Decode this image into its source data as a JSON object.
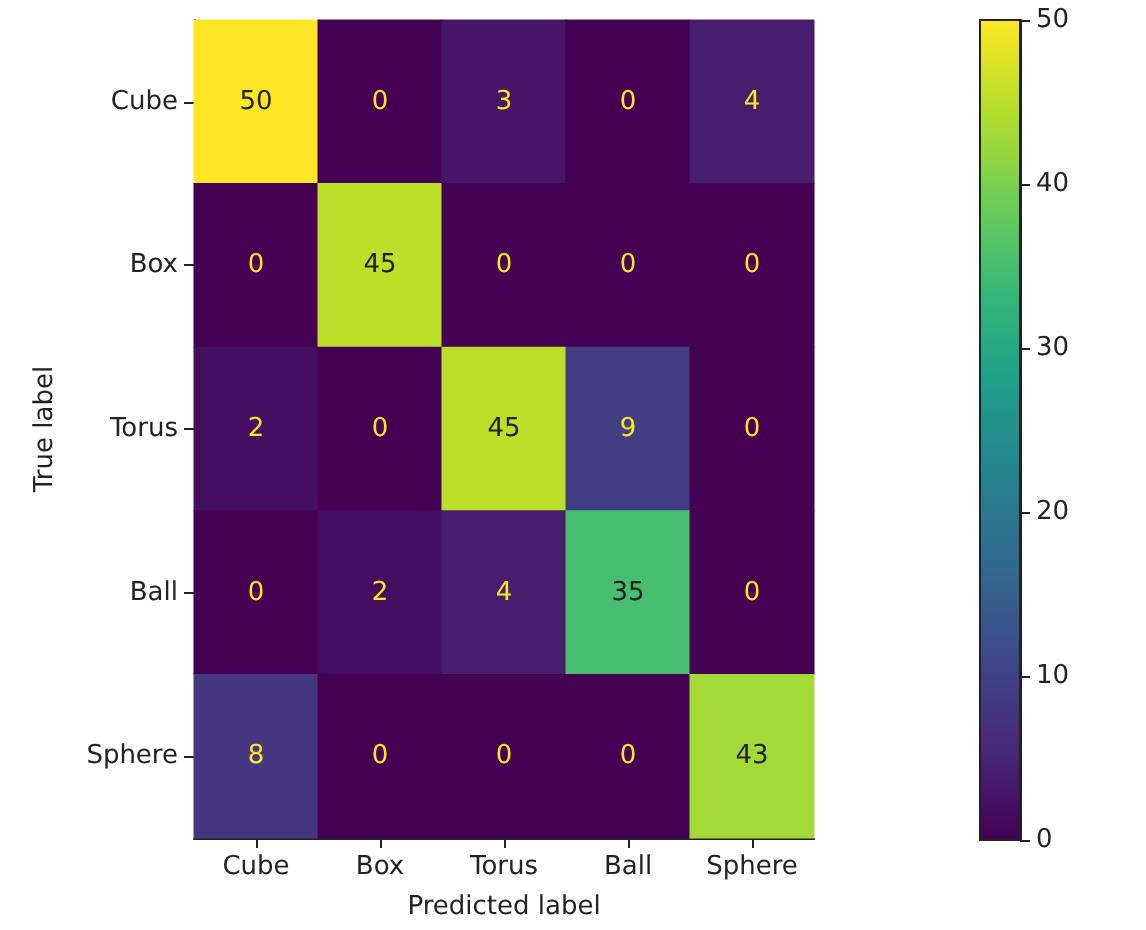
{
  "chart_data": {
    "type": "heatmap",
    "xlabel": "Predicted label",
    "ylabel": "True label",
    "categories": [
      "Cube",
      "Box",
      "Torus",
      "Ball",
      "Sphere"
    ],
    "y_categories": [
      "Cube",
      "Box",
      "Torus",
      "Ball",
      "Sphere"
    ],
    "cells": [
      [
        50,
        0,
        3,
        0,
        4
      ],
      [
        0,
        45,
        0,
        0,
        0
      ],
      [
        2,
        0,
        45,
        9,
        0
      ],
      [
        0,
        2,
        4,
        35,
        0
      ],
      [
        8,
        0,
        0,
        0,
        43
      ]
    ],
    "clim": [
      0,
      50
    ],
    "cticks": [
      0,
      10,
      20,
      30,
      40,
      50
    ],
    "data_labels": true
  }
}
